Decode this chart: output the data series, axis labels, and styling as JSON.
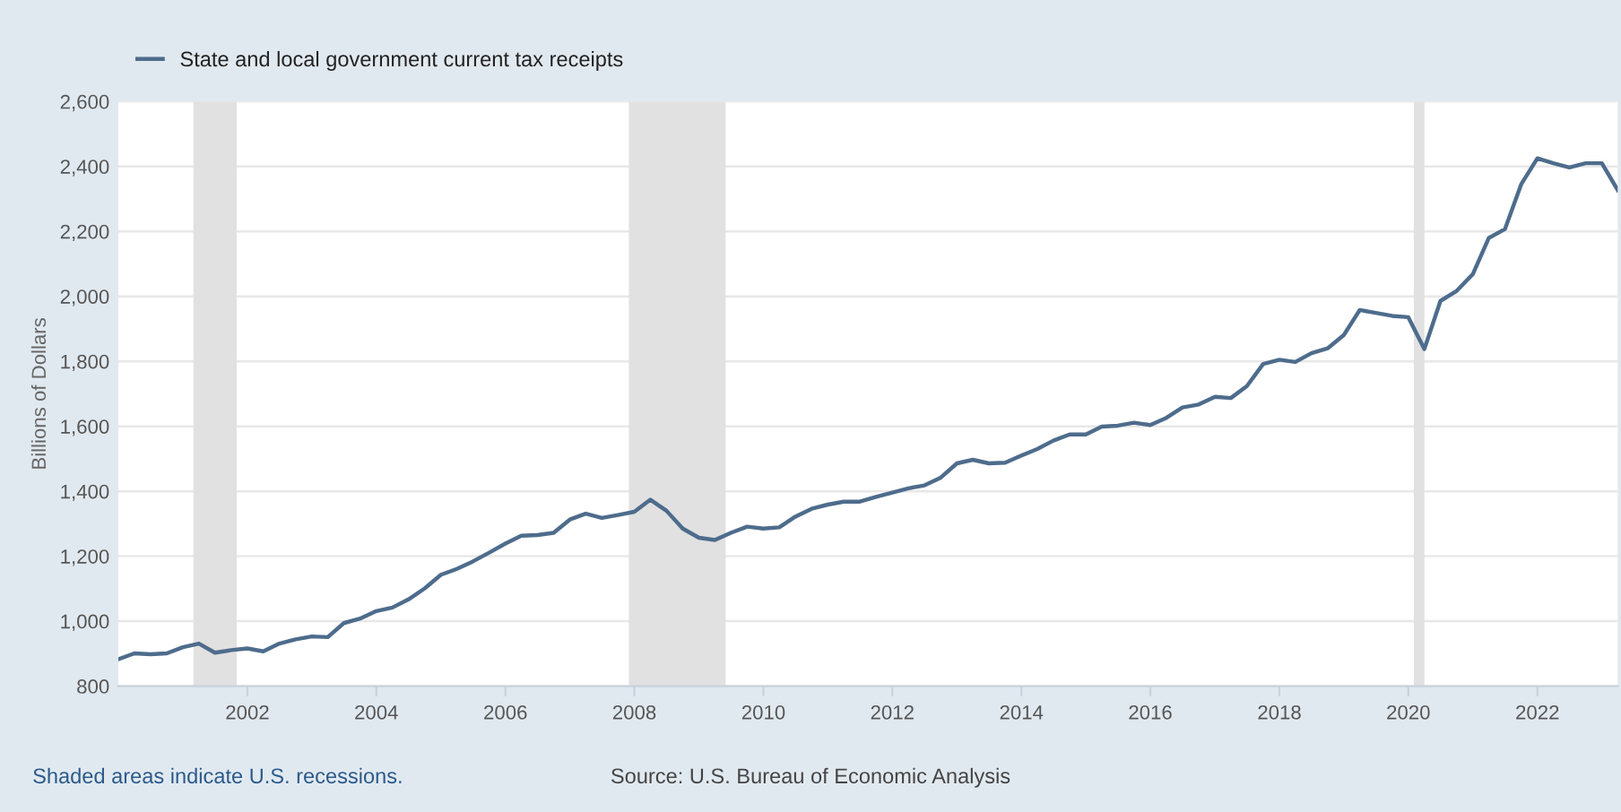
{
  "chart_data": {
    "type": "line",
    "ylabel": "Billions of Dollars",
    "legend": "top left",
    "grid": "y",
    "x": [
      "2000-01",
      "2000-04",
      "2000-07",
      "2000-10",
      "2001-01",
      "2001-04",
      "2001-07",
      "2001-10",
      "2002-01",
      "2002-04",
      "2002-07",
      "2002-10",
      "2003-01",
      "2003-04",
      "2003-07",
      "2003-10",
      "2004-01",
      "2004-04",
      "2004-07",
      "2004-10",
      "2005-01",
      "2005-04",
      "2005-07",
      "2005-10",
      "2006-01",
      "2006-04",
      "2006-07",
      "2006-10",
      "2007-01",
      "2007-04",
      "2007-07",
      "2007-10",
      "2008-01",
      "2008-04",
      "2008-07",
      "2008-10",
      "2009-01",
      "2009-04",
      "2009-07",
      "2009-10",
      "2010-01",
      "2010-04",
      "2010-07",
      "2010-10",
      "2011-01",
      "2011-04",
      "2011-07",
      "2011-10",
      "2012-01",
      "2012-04",
      "2012-07",
      "2012-10",
      "2013-01",
      "2013-04",
      "2013-07",
      "2013-10",
      "2014-01",
      "2014-04",
      "2014-07",
      "2014-10",
      "2015-01",
      "2015-04",
      "2015-07",
      "2015-10",
      "2016-01",
      "2016-04",
      "2016-07",
      "2016-10",
      "2017-01",
      "2017-04",
      "2017-07",
      "2017-10",
      "2018-01",
      "2018-04",
      "2018-07",
      "2018-10",
      "2019-01",
      "2019-04",
      "2019-07",
      "2019-10",
      "2020-01",
      "2020-04",
      "2020-07",
      "2020-10",
      "2021-01",
      "2021-04",
      "2021-07",
      "2021-10",
      "2022-01",
      "2022-04",
      "2022-07",
      "2022-10",
      "2023-01",
      "2023-04"
    ],
    "series": [
      {
        "name": "State and local government current tax receipts",
        "color": "#4e6c8c",
        "values": [
          883,
          901,
          898,
          901,
          920,
          931,
          903,
          911,
          916,
          907,
          931,
          944,
          953,
          951,
          994,
          1008,
          1031,
          1042,
          1067,
          1101,
          1143,
          1161,
          1184,
          1211,
          1239,
          1263,
          1265,
          1272,
          1313,
          1331,
          1318,
          1327,
          1337,
          1374,
          1340,
          1285,
          1257,
          1250,
          1272,
          1291,
          1285,
          1289,
          1322,
          1346,
          1359,
          1368,
          1368,
          1383,
          1396,
          1409,
          1418,
          1442,
          1486,
          1497,
          1486,
          1488,
          1510,
          1530,
          1556,
          1575,
          1575,
          1599,
          1602,
          1611,
          1604,
          1626,
          1658,
          1667,
          1691,
          1687,
          1724,
          1792,
          1805,
          1798,
          1825,
          1840,
          1881,
          1958,
          1949,
          1940,
          1936,
          1838,
          1986,
          2017,
          2069,
          2180,
          2207,
          2345,
          2425,
          2410,
          2397,
          2410,
          2410,
          2327
        ]
      }
    ],
    "xlim": [
      "2000-01",
      "2023-04"
    ],
    "xticks": [
      "2002",
      "2004",
      "2006",
      "2008",
      "2010",
      "2012",
      "2014",
      "2016",
      "2018",
      "2020",
      "2022"
    ],
    "ylim": [
      800,
      2600
    ],
    "yticks": [
      800,
      {
        "value": 1000,
        "label": "1,000"
      },
      {
        "value": 1200,
        "label": "1,200"
      },
      {
        "value": 1400,
        "label": "1,400"
      },
      {
        "value": 1600,
        "label": "1,600"
      },
      {
        "value": 1800,
        "label": "1,800"
      },
      {
        "value": 2000,
        "label": "2,000"
      },
      {
        "value": 2200,
        "label": "2,200"
      },
      {
        "value": 2400,
        "label": "2,400"
      },
      {
        "value": 2600,
        "label": "2,600"
      }
    ],
    "bands": [
      {
        "axis": "x",
        "from": "2001-03",
        "to": "2001-11",
        "color": "#e1e1e1"
      },
      {
        "axis": "x",
        "from": "2007-12",
        "to": "2009-06",
        "color": "#e1e1e1"
      },
      {
        "axis": "x",
        "from": "2020-02",
        "to": "2020-04",
        "color": "#e1e1e1"
      }
    ],
    "annotations": [
      "Shaded areas indicate U.S. recessions.",
      "Source: U.S. Bureau of Economic Analysis"
    ]
  }
}
